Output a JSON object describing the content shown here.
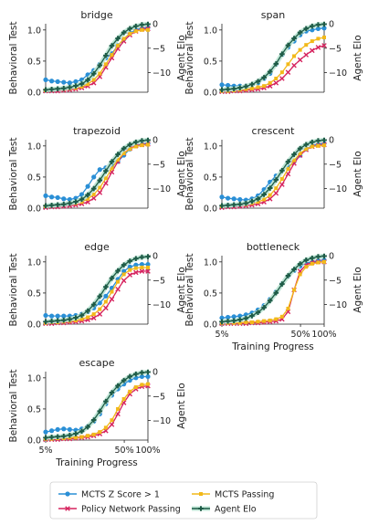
{
  "chart_data": {
    "type": "line",
    "panels": [
      "bridge",
      "span",
      "trapezoid",
      "crescent",
      "edge",
      "bottleneck",
      "escape"
    ],
    "ylabel_left": "Behavioral Test",
    "ylabel_right": "Agent Elo",
    "xlabel": "Training Progress",
    "xticks": [
      "5%",
      "50%",
      "100%"
    ],
    "yticks_left": [
      "0.0",
      "0.5",
      "1.0"
    ],
    "yticks_right": [
      "0",
      "−5",
      "−10"
    ],
    "ylim_left": [
      0,
      1.1
    ],
    "ylim_right": [
      -14,
      0
    ],
    "x_progress_range": [
      0.05,
      1.0
    ],
    "x_axis_scale": "log",
    "grid": false,
    "legend_position": "bottom-center",
    "series_meta": [
      {
        "key": "zscore",
        "name": "MCTS Z Score > 1",
        "color": "#2a8fd6",
        "marker": "circle"
      },
      {
        "key": "policy",
        "name": "Policy Network Passing",
        "color": "#d6245f",
        "marker": "x"
      },
      {
        "key": "mcts",
        "name": "MCTS Passing",
        "color": "#f2b91a",
        "marker": "square"
      },
      {
        "key": "elo",
        "name": "Agent Elo",
        "color": "#1e5b47",
        "marker": "plus"
      }
    ],
    "panel_data": [
      {
        "name": "bridge",
        "zscore": [
          0.2,
          0.18,
          0.17,
          0.16,
          0.15,
          0.17,
          0.2,
          0.28,
          0.35,
          0.45,
          0.55,
          0.62,
          0.75,
          0.85,
          0.95,
          1.0,
          1.03,
          1.04
        ],
        "policy": [
          0.02,
          0.02,
          0.02,
          0.03,
          0.04,
          0.05,
          0.07,
          0.1,
          0.15,
          0.25,
          0.4,
          0.55,
          0.7,
          0.82,
          0.92,
          0.98,
          1.01,
          1.02
        ],
        "mcts": [
          0.03,
          0.04,
          0.05,
          0.05,
          0.06,
          0.07,
          0.09,
          0.13,
          0.2,
          0.3,
          0.45,
          0.6,
          0.75,
          0.86,
          0.94,
          0.98,
          1.0,
          1.0
        ],
        "elo": [
          -13.5,
          -13.4,
          -13.3,
          -13.2,
          -13.0,
          -12.7,
          -12.3,
          -11.5,
          -10.2,
          -8.5,
          -6.5,
          -4.5,
          -3.0,
          -1.8,
          -1.0,
          -0.5,
          -0.2,
          -0.1
        ]
      },
      {
        "name": "span",
        "zscore": [
          0.12,
          0.11,
          0.1,
          0.1,
          0.1,
          0.12,
          0.15,
          0.22,
          0.3,
          0.45,
          0.6,
          0.72,
          0.82,
          0.92,
          0.98,
          1.0,
          1.02,
          1.03
        ],
        "policy": [
          0.01,
          0.01,
          0.02,
          0.02,
          0.03,
          0.04,
          0.05,
          0.07,
          0.1,
          0.15,
          0.22,
          0.32,
          0.43,
          0.52,
          0.6,
          0.67,
          0.72,
          0.75
        ],
        "mcts": [
          0.02,
          0.02,
          0.03,
          0.04,
          0.05,
          0.06,
          0.08,
          0.1,
          0.15,
          0.22,
          0.32,
          0.45,
          0.58,
          0.68,
          0.76,
          0.82,
          0.86,
          0.88
        ],
        "elo": [
          -13.5,
          -13.4,
          -13.3,
          -13.1,
          -12.8,
          -12.4,
          -11.8,
          -11.0,
          -9.8,
          -8.2,
          -6.2,
          -4.4,
          -3.0,
          -1.8,
          -1.0,
          -0.5,
          -0.2,
          -0.1
        ]
      },
      {
        "name": "trapezoid",
        "zscore": [
          0.2,
          0.18,
          0.17,
          0.15,
          0.14,
          0.16,
          0.22,
          0.35,
          0.5,
          0.62,
          0.65,
          0.68,
          0.75,
          0.85,
          0.95,
          1.0,
          1.03,
          1.04
        ],
        "policy": [
          0.01,
          0.02,
          0.02,
          0.03,
          0.04,
          0.05,
          0.07,
          0.1,
          0.16,
          0.25,
          0.4,
          0.58,
          0.75,
          0.88,
          0.96,
          1.0,
          1.02,
          1.03
        ],
        "mcts": [
          0.03,
          0.04,
          0.05,
          0.06,
          0.07,
          0.08,
          0.1,
          0.15,
          0.22,
          0.33,
          0.48,
          0.64,
          0.78,
          0.88,
          0.95,
          0.99,
          1.01,
          1.02
        ],
        "elo": [
          -13.5,
          -13.4,
          -13.3,
          -13.2,
          -13.0,
          -12.7,
          -12.2,
          -11.3,
          -10.0,
          -8.3,
          -6.4,
          -4.5,
          -3.0,
          -1.8,
          -1.0,
          -0.5,
          -0.2,
          -0.1
        ]
      },
      {
        "name": "crescent",
        "zscore": [
          0.18,
          0.16,
          0.15,
          0.14,
          0.13,
          0.15,
          0.2,
          0.3,
          0.42,
          0.52,
          0.6,
          0.66,
          0.75,
          0.85,
          0.95,
          1.0,
          1.03,
          1.04
        ],
        "policy": [
          0.01,
          0.02,
          0.02,
          0.03,
          0.04,
          0.05,
          0.07,
          0.1,
          0.15,
          0.24,
          0.38,
          0.55,
          0.72,
          0.85,
          0.94,
          0.99,
          1.01,
          1.02
        ],
        "mcts": [
          0.03,
          0.04,
          0.05,
          0.06,
          0.06,
          0.08,
          0.1,
          0.14,
          0.21,
          0.32,
          0.47,
          0.63,
          0.77,
          0.88,
          0.95,
          0.99,
          1.0,
          1.01
        ],
        "elo": [
          -13.5,
          -13.4,
          -13.3,
          -13.2,
          -13.0,
          -12.6,
          -12.1,
          -11.2,
          -9.9,
          -8.2,
          -6.3,
          -4.5,
          -3.0,
          -1.8,
          -1.0,
          -0.5,
          -0.2,
          -0.1
        ]
      },
      {
        "name": "edge",
        "zscore": [
          0.14,
          0.13,
          0.13,
          0.13,
          0.13,
          0.14,
          0.16,
          0.2,
          0.26,
          0.34,
          0.45,
          0.58,
          0.72,
          0.85,
          0.92,
          0.95,
          0.96,
          0.96
        ],
        "policy": [
          0.01,
          0.01,
          0.02,
          0.02,
          0.03,
          0.04,
          0.05,
          0.07,
          0.1,
          0.16,
          0.26,
          0.4,
          0.56,
          0.7,
          0.79,
          0.83,
          0.85,
          0.85
        ],
        "mcts": [
          0.02,
          0.03,
          0.03,
          0.04,
          0.05,
          0.06,
          0.08,
          0.11,
          0.16,
          0.24,
          0.36,
          0.52,
          0.68,
          0.8,
          0.87,
          0.9,
          0.91,
          0.91
        ],
        "elo": [
          -13.5,
          -13.4,
          -13.3,
          -13.2,
          -13.0,
          -12.7,
          -12.2,
          -11.3,
          -10.0,
          -8.3,
          -6.4,
          -4.6,
          -3.1,
          -1.9,
          -1.1,
          -0.6,
          -0.3,
          -0.2
        ]
      },
      {
        "name": "bottleneck",
        "zscore": [
          0.1,
          0.11,
          0.12,
          0.13,
          0.15,
          0.18,
          0.23,
          0.3,
          0.4,
          0.52,
          0.65,
          0.77,
          0.86,
          0.93,
          0.98,
          1.0,
          1.02,
          1.03
        ],
        "policy": [
          0.01,
          0.01,
          0.01,
          0.01,
          0.01,
          0.02,
          0.02,
          0.03,
          0.04,
          0.05,
          0.08,
          0.2,
          0.55,
          0.85,
          0.95,
          0.99,
          1.0,
          1.0
        ],
        "mcts": [
          0.02,
          0.02,
          0.02,
          0.02,
          0.03,
          0.03,
          0.04,
          0.05,
          0.06,
          0.08,
          0.12,
          0.25,
          0.55,
          0.8,
          0.92,
          0.97,
          0.99,
          1.0
        ],
        "elo": [
          -13.5,
          -13.4,
          -13.3,
          -13.1,
          -12.8,
          -12.3,
          -11.6,
          -10.6,
          -9.2,
          -7.6,
          -5.8,
          -4.1,
          -2.8,
          -1.7,
          -0.9,
          -0.5,
          -0.2,
          -0.1
        ]
      },
      {
        "name": "escape",
        "zscore": [
          0.13,
          0.15,
          0.17,
          0.18,
          0.17,
          0.16,
          0.18,
          0.22,
          0.3,
          0.42,
          0.58,
          0.72,
          0.82,
          0.9,
          0.96,
          1.0,
          1.02,
          1.02
        ],
        "policy": [
          0.01,
          0.01,
          0.01,
          0.02,
          0.02,
          0.03,
          0.04,
          0.05,
          0.07,
          0.1,
          0.15,
          0.25,
          0.42,
          0.6,
          0.74,
          0.82,
          0.86,
          0.87
        ],
        "mcts": [
          0.02,
          0.02,
          0.03,
          0.03,
          0.04,
          0.04,
          0.05,
          0.07,
          0.09,
          0.13,
          0.2,
          0.32,
          0.5,
          0.66,
          0.78,
          0.85,
          0.89,
          0.9
        ],
        "elo": [
          -13.5,
          -13.4,
          -13.3,
          -13.2,
          -13.0,
          -12.7,
          -12.2,
          -11.3,
          -9.9,
          -8.1,
          -6.1,
          -4.3,
          -2.9,
          -1.8,
          -1.0,
          -0.5,
          -0.2,
          -0.1
        ]
      }
    ]
  }
}
